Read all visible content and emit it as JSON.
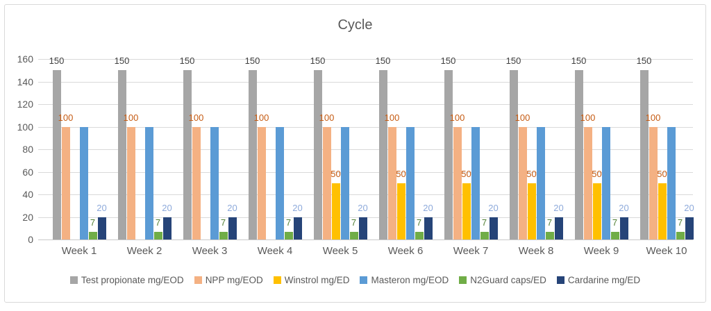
{
  "chart_data": {
    "type": "bar",
    "title": "Cycle",
    "categories": [
      "Week 1",
      "Week 2",
      "Week 3",
      "Week 4",
      "Week 5",
      "Week 6",
      "Week 7",
      "Week 8",
      "Week 9",
      "Week 10"
    ],
    "series": [
      {
        "name": "Test propionate mg/EOD",
        "color": "#a6a6a6",
        "label_color": "#404040",
        "show_labels": true,
        "values": [
          150,
          150,
          150,
          150,
          150,
          150,
          150,
          150,
          150,
          150
        ]
      },
      {
        "name": "NPP mg/EOD",
        "color": "#f4b183",
        "label_color": "#c55a11",
        "show_labels": true,
        "values": [
          100,
          100,
          100,
          100,
          100,
          100,
          100,
          100,
          100,
          100
        ]
      },
      {
        "name": "Winstrol mg/ED",
        "color": "#ffc000",
        "label_color": "#c55a11",
        "show_labels": true,
        "values": [
          0,
          0,
          0,
          0,
          50,
          50,
          50,
          50,
          50,
          50
        ]
      },
      {
        "name": "Masteron mg/EOD",
        "color": "#5b9bd5",
        "label_color": "#5b9bd5",
        "show_labels": false,
        "values": [
          100,
          100,
          100,
          100,
          100,
          100,
          100,
          100,
          100,
          100
        ]
      },
      {
        "name": "N2Guard caps/ED",
        "color": "#70ad47",
        "label_color": "#538135",
        "show_labels": true,
        "values": [
          7,
          7,
          7,
          7,
          7,
          7,
          7,
          7,
          7,
          7
        ]
      },
      {
        "name": "Cardarine mg/ED",
        "color": "#264478",
        "label_color": "#8eaadb",
        "show_labels": true,
        "values": [
          20,
          20,
          20,
          20,
          20,
          20,
          20,
          20,
          20,
          20
        ]
      }
    ],
    "ylim": [
      0,
      160
    ],
    "yticks": [
      0,
      20,
      40,
      60,
      80,
      100,
      120,
      140,
      160
    ],
    "grid": true,
    "legend_position": "bottom",
    "text_color": "#595959",
    "gridline_color": "#d9d9d9"
  }
}
